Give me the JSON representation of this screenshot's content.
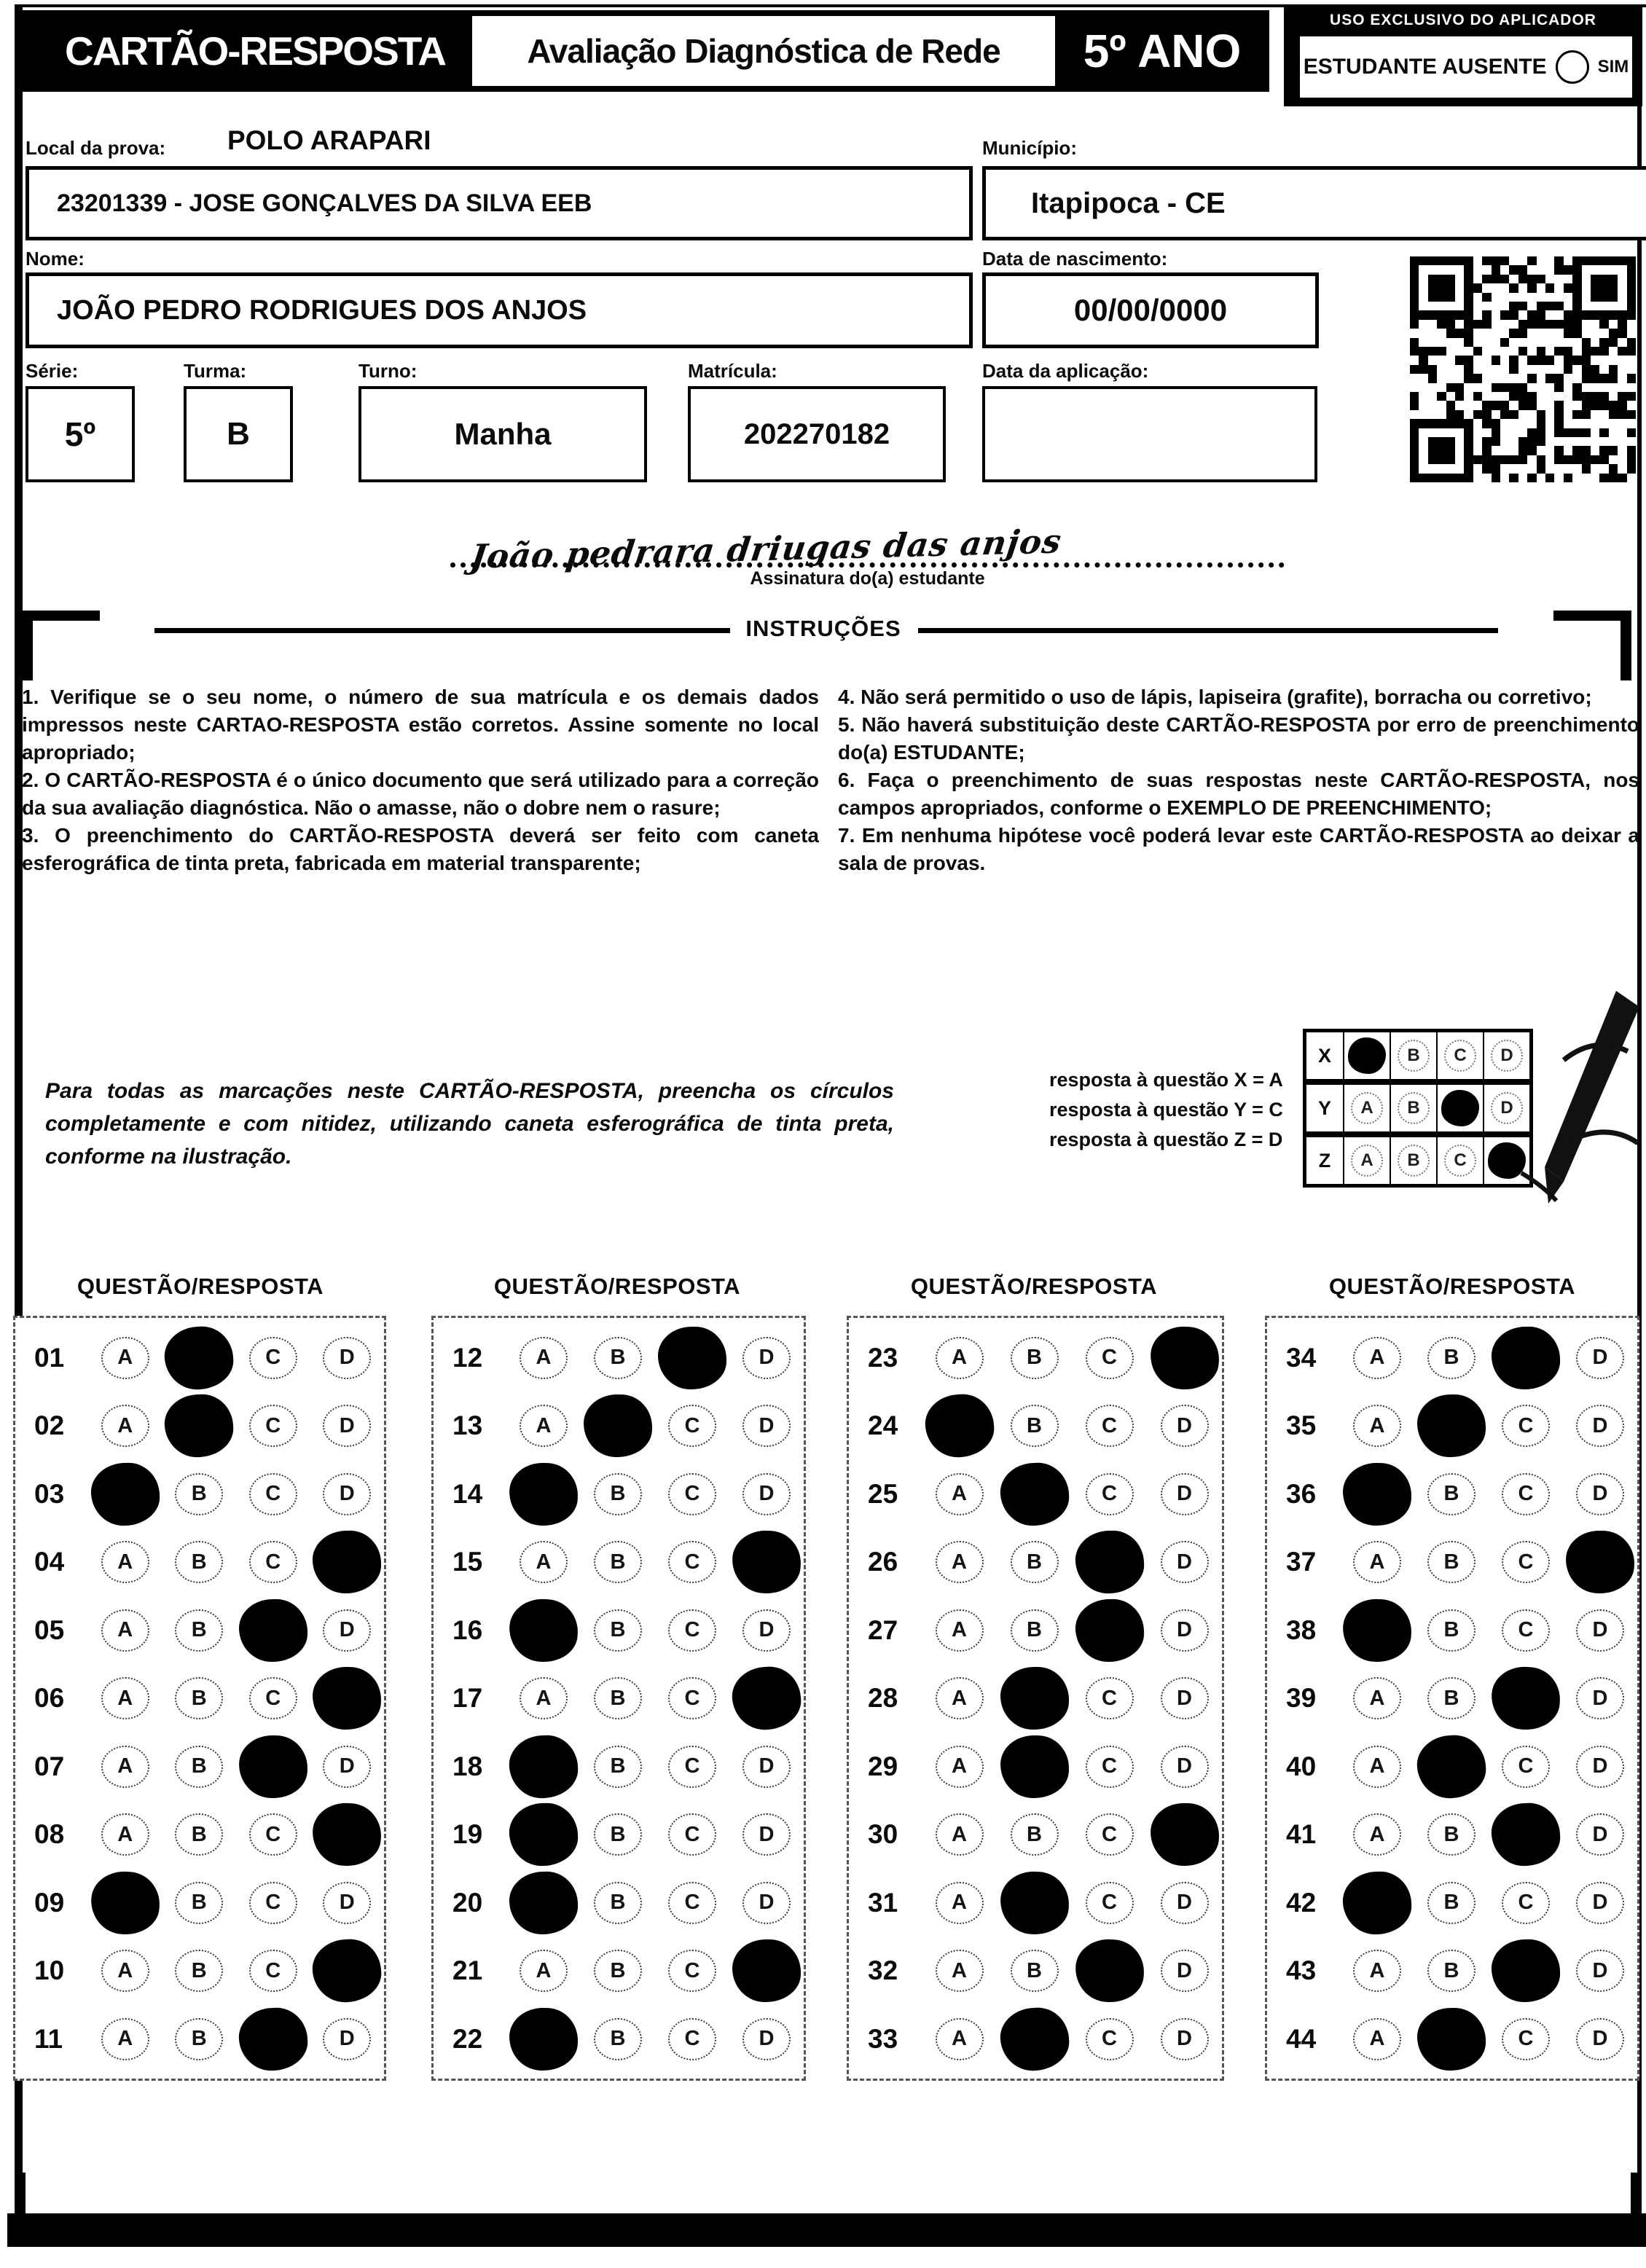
{
  "colors": {
    "ink": "#0b0b0b",
    "paper": "#ffffff"
  },
  "header": {
    "card_title": "CARTÃO-RESPOSTA",
    "exam_title": "Avaliação Diagnóstica de Rede",
    "grade": "5º ANO",
    "applier_box_title": "USO EXCLUSIVO DO APLICADOR",
    "absent_label": "ESTUDANTE AUSENTE",
    "absent_yes": "SIM"
  },
  "form": {
    "local_label": "Local da prova:",
    "local_value": "POLO ARAPARI",
    "school_value": "23201339 - JOSE GONÇALVES DA SILVA EEB",
    "municipio_label": "Município:",
    "municipio_value": "Itapipoca - CE",
    "nome_label": "Nome:",
    "nome_value": "JOÃO PEDRO RODRIGUES DOS ANJOS",
    "nascimento_label": "Data de nascimento:",
    "nascimento_value": "00/00/0000",
    "serie_label": "Série:",
    "serie_value": "5º",
    "turma_label": "Turma:",
    "turma_value": "B",
    "turno_label": "Turno:",
    "turno_value": "Manha",
    "matricula_label": "Matrícula:",
    "matricula_value": "202270182",
    "aplicacao_label": "Data da aplicação:",
    "aplicacao_value": ""
  },
  "signature": {
    "text": "João pedrara driugas das anjos",
    "label": "Assinatura do(a) estudante"
  },
  "instructions": {
    "title": "INSTRUÇÕES",
    "left": [
      "1. Verifique se o seu nome, o número de sua matrícula e os demais dados impressos neste CARTAO-RESPOSTA estão corretos. Assine somente no local apropriado;",
      "2. O CARTÃO-RESPOSTA é o único documento que será utilizado para a correção da sua avaliação diagnóstica. Não o amasse, não o dobre nem o rasure;",
      "3. O preenchimento do CARTÃO-RESPOSTA deverá ser feito com caneta esferográfica de tinta preta, fabricada em material transparente;"
    ],
    "right": [
      "4. Não será permitido o uso de lápis, lapiseira (grafite), borracha ou corretivo;",
      "5. Não haverá substituição deste CARTÃO-RESPOSTA por erro de preenchimento do(a) ESTUDANTE;",
      "6. Faça o preenchimento de suas respostas neste CARTÃO-RESPOSTA, nos campos apropriados, conforme o EXEMPLO DE PREENCHIMENTO;",
      "7. Em nenhuma hipótese você poderá levar este CARTÃO-RESPOSTA ao deixar a sala de provas."
    ]
  },
  "example": {
    "note": "Para todas as marcações neste CARTÃO-RESPOSTA, preencha os círculos completamente e com nitidez, utilizando caneta esferográfica de tinta preta, conforme na ilustração.",
    "legend": [
      "resposta à questão X = A",
      "resposta à questão Y = C",
      "resposta à questão Z = D"
    ],
    "grid": {
      "options": [
        "A",
        "B",
        "C",
        "D"
      ],
      "rows": [
        {
          "label": "X",
          "marked": "A"
        },
        {
          "label": "Y",
          "marked": "C"
        },
        {
          "label": "Z",
          "marked": "D"
        }
      ]
    }
  },
  "answers": {
    "column_header": "QUESTÃO/RESPOSTA",
    "options": [
      "A",
      "B",
      "C",
      "D"
    ],
    "columns": [
      [
        {
          "q": "01",
          "marked": "B"
        },
        {
          "q": "02",
          "marked": "B"
        },
        {
          "q": "03",
          "marked": "A"
        },
        {
          "q": "04",
          "marked": "D"
        },
        {
          "q": "05",
          "marked": "C"
        },
        {
          "q": "06",
          "marked": "D"
        },
        {
          "q": "07",
          "marked": "C"
        },
        {
          "q": "08",
          "marked": "D"
        },
        {
          "q": "09",
          "marked": "A"
        },
        {
          "q": "10",
          "marked": "D"
        },
        {
          "q": "11",
          "marked": "C"
        }
      ],
      [
        {
          "q": "12",
          "marked": "C"
        },
        {
          "q": "13",
          "marked": "B"
        },
        {
          "q": "14",
          "marked": "A"
        },
        {
          "q": "15",
          "marked": "D"
        },
        {
          "q": "16",
          "marked": "A"
        },
        {
          "q": "17",
          "marked": "D"
        },
        {
          "q": "18",
          "marked": "A"
        },
        {
          "q": "19",
          "marked": "A"
        },
        {
          "q": "20",
          "marked": "A"
        },
        {
          "q": "21",
          "marked": "D"
        },
        {
          "q": "22",
          "marked": "A"
        }
      ],
      [
        {
          "q": "23",
          "marked": "D"
        },
        {
          "q": "24",
          "marked": "A"
        },
        {
          "q": "25",
          "marked": "B"
        },
        {
          "q": "26",
          "marked": "C"
        },
        {
          "q": "27",
          "marked": "C"
        },
        {
          "q": "28",
          "marked": "B"
        },
        {
          "q": "29",
          "marked": "B"
        },
        {
          "q": "30",
          "marked": "D"
        },
        {
          "q": "31",
          "marked": "B"
        },
        {
          "q": "32",
          "marked": "C"
        },
        {
          "q": "33",
          "marked": "B"
        }
      ],
      [
        {
          "q": "34",
          "marked": "C"
        },
        {
          "q": "35",
          "marked": "B"
        },
        {
          "q": "36",
          "marked": "A"
        },
        {
          "q": "37",
          "marked": "D"
        },
        {
          "q": "38",
          "marked": "A"
        },
        {
          "q": "39",
          "marked": "C"
        },
        {
          "q": "40",
          "marked": "B"
        },
        {
          "q": "41",
          "marked": "C"
        },
        {
          "q": "42",
          "marked": "A"
        },
        {
          "q": "43",
          "marked": "C"
        },
        {
          "q": "44",
          "marked": "B"
        }
      ]
    ]
  }
}
